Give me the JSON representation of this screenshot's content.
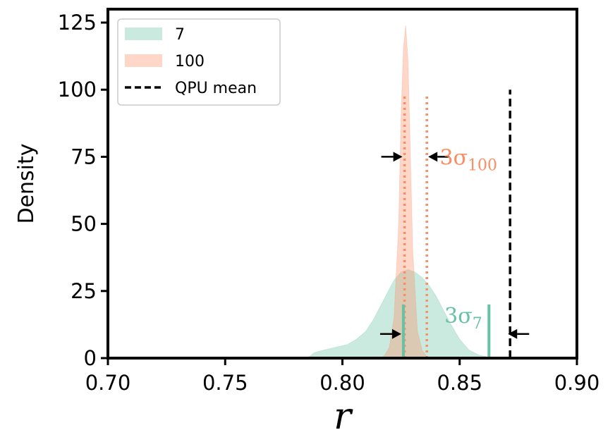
{
  "chart_data": {
    "type": "area",
    "xlabel": "r",
    "ylabel": "Density",
    "xlim": [
      0.7,
      0.9
    ],
    "ylim": [
      0,
      130
    ],
    "xticks": [
      "0.70",
      "0.75",
      "0.80",
      "0.85",
      "0.90"
    ],
    "yticks": [
      "0",
      "25",
      "50",
      "75",
      "100",
      "125"
    ],
    "legend_position": "top-left",
    "series": [
      {
        "name": "7",
        "color": "#66c2a5",
        "x": [
          0.785,
          0.788,
          0.792,
          0.797,
          0.802,
          0.806,
          0.81,
          0.813,
          0.816,
          0.819,
          0.822,
          0.825,
          0.828,
          0.831,
          0.834,
          0.837,
          0.84,
          0.843,
          0.846,
          0.85,
          0.854,
          0.858,
          0.862,
          0.866
        ],
        "y": [
          0,
          2,
          3,
          4,
          5,
          7,
          10,
          14,
          19,
          24,
          29,
          32,
          33,
          32,
          30,
          27,
          23,
          18,
          13,
          7,
          3,
          1.2,
          0.4,
          0
        ]
      },
      {
        "name": "100",
        "color": "#fc8d62",
        "x": [
          0.816,
          0.818,
          0.82,
          0.822,
          0.824,
          0.825,
          0.826,
          0.827,
          0.828,
          0.829,
          0.83,
          0.832,
          0.834,
          0.836,
          0.838
        ],
        "y": [
          0,
          1,
          4,
          15,
          50,
          90,
          115,
          124,
          110,
          75,
          40,
          10,
          3,
          0.5,
          0
        ]
      }
    ],
    "reference_lines": [
      {
        "name": "QPU mean",
        "x": 0.8715,
        "y_range": [
          0,
          100
        ],
        "style": "dashed",
        "color": "#000000"
      }
    ],
    "interval_markers": [
      {
        "series": "100",
        "x_start": 0.8265,
        "x_end": 0.836,
        "y_range": [
          0,
          98
        ],
        "style": "dotted",
        "color": "#fc8d62"
      },
      {
        "series": "7",
        "x_start": 0.826,
        "x_end": 0.8625,
        "y_range": [
          0,
          20
        ],
        "style": "solid",
        "color": "#66c2a5"
      }
    ],
    "annotations": [
      {
        "text": "3σ100",
        "base": "3σ",
        "sub": "100",
        "color": "#fc8d62",
        "x": 0.8415,
        "y": 75
      },
      {
        "text": "3σ7",
        "base": "3σ",
        "sub": "7",
        "color": "#66c2a5",
        "x": 0.8435,
        "y": 16
      }
    ]
  }
}
